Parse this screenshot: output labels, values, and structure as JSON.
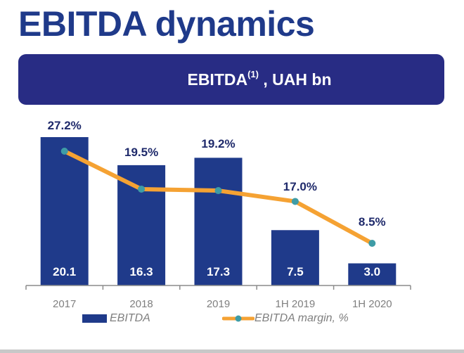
{
  "page": {
    "title": "EBITDA dynamics",
    "banner_main": "EBITDA",
    "banner_sup": "(1)",
    "banner_suffix": " , UAH bn"
  },
  "colors": {
    "title": "#1F3A8A",
    "banner": "#282C84",
    "bar": "#1F3A8A",
    "line": "#F5A233",
    "marker": "#3E9CA6",
    "axis": "#8c8c8c",
    "tick_label": "#7f7f7f",
    "margin_label": "#1F2A6B"
  },
  "chart_data": {
    "type": "bar",
    "title": "EBITDA(1), UAH bn",
    "categories": [
      "2017",
      "2018",
      "2019",
      "1H 2019",
      "1H 2020"
    ],
    "series": [
      {
        "name": "EBITDA",
        "type": "bar",
        "values": [
          20.1,
          16.3,
          17.3,
          7.5,
          3.0
        ],
        "labels": [
          "20.1",
          "16.3",
          "17.3",
          "7.5",
          "3.0"
        ]
      },
      {
        "name": "EBITDA margin, %",
        "type": "line",
        "values": [
          27.2,
          19.5,
          19.2,
          17.0,
          8.5
        ],
        "labels": [
          "27.2%",
          "19.5%",
          "19.2%",
          "17.0%",
          "8.5%"
        ]
      }
    ],
    "xlabel": "",
    "ylabel": "",
    "ylim_bar": [
      0,
      21.5
    ],
    "ylim_line": [
      0,
      39
    ],
    "grid": false,
    "legend": {
      "position": "bottom",
      "entries": [
        "EBITDA",
        "EBITDA margin, %"
      ]
    }
  }
}
